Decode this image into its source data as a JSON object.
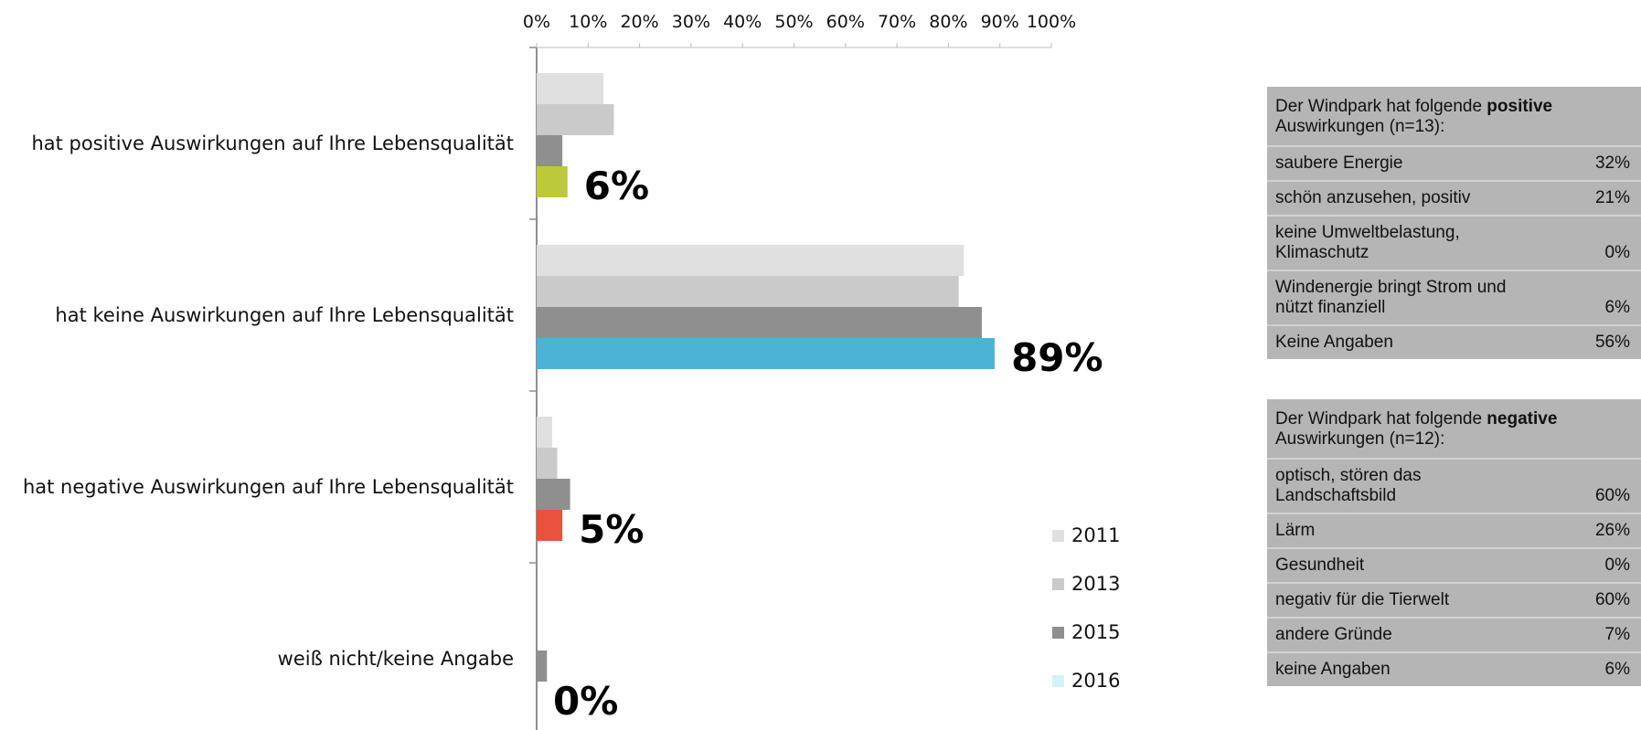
{
  "chart_data": {
    "type": "bar",
    "orientation": "horizontal",
    "x_ticks": [
      "0%",
      "10%",
      "20%",
      "30%",
      "40%",
      "50%",
      "60%",
      "70%",
      "80%",
      "90%",
      "100%"
    ],
    "xlim": [
      0,
      100
    ],
    "categories": [
      "hat positive Auswirkungen auf Ihre Lebensqualität",
      "hat keine Auswirkungen auf Ihre Lebensqualität",
      "hat negative Auswirkungen auf Ihre Lebensqualität",
      "weiß nicht/keine Angabe"
    ],
    "series": [
      {
        "name": "2011",
        "color": "#e0e0e0",
        "values": [
          13,
          83,
          3,
          0
        ]
      },
      {
        "name": "2013",
        "color": "#cacaca",
        "values": [
          15,
          82,
          4,
          0
        ]
      },
      {
        "name": "2015",
        "color": "#8f8f8f",
        "values": [
          5,
          86.5,
          6.5,
          2
        ]
      },
      {
        "name": "2016",
        "color_by_category": [
          "#bcc93a",
          "#4cb3d6",
          "#e8533f",
          "#d4f1fa"
        ],
        "legend_color": "#d4f1fa",
        "values": [
          6,
          89,
          5,
          0
        ]
      }
    ],
    "data_labels_2016": [
      "6%",
      "89%",
      "5%",
      "0%"
    ],
    "legend": [
      "2011",
      "2013",
      "2015",
      "2016"
    ],
    "legend_position": "bottom-right",
    "grid": false
  },
  "panels": {
    "positive": {
      "head_before": "Der Windpark hat folgende ",
      "head_bold": "positive",
      "head_after": " Auswirkungen (n=13):",
      "rows": [
        {
          "label": "saubere Energie",
          "value": "32%"
        },
        {
          "label": "schön anzusehen, positiv",
          "value": "21%"
        },
        {
          "label": "keine Umweltbelastung, Klimaschutz",
          "value": "0%"
        },
        {
          "label": "Windenergie bringt Strom und nützt finanziell",
          "value": "6%"
        },
        {
          "label": "Keine Angaben",
          "value": "56%"
        }
      ]
    },
    "negative": {
      "head_before": "Der Windpark hat folgende ",
      "head_bold": "negative",
      "head_after": " Auswirkungen (n=12):",
      "rows": [
        {
          "label": "optisch, stören das Landschaftsbild",
          "value": "60%"
        },
        {
          "label": "Lärm",
          "value": "26%"
        },
        {
          "label": "Gesundheit",
          "value": "0%"
        },
        {
          "label": "negativ für die Tierwelt",
          "value": "60%"
        },
        {
          "label": "andere Gründe",
          "value": "7%"
        },
        {
          "label": "keine Angaben",
          "value": "6%"
        }
      ]
    }
  }
}
